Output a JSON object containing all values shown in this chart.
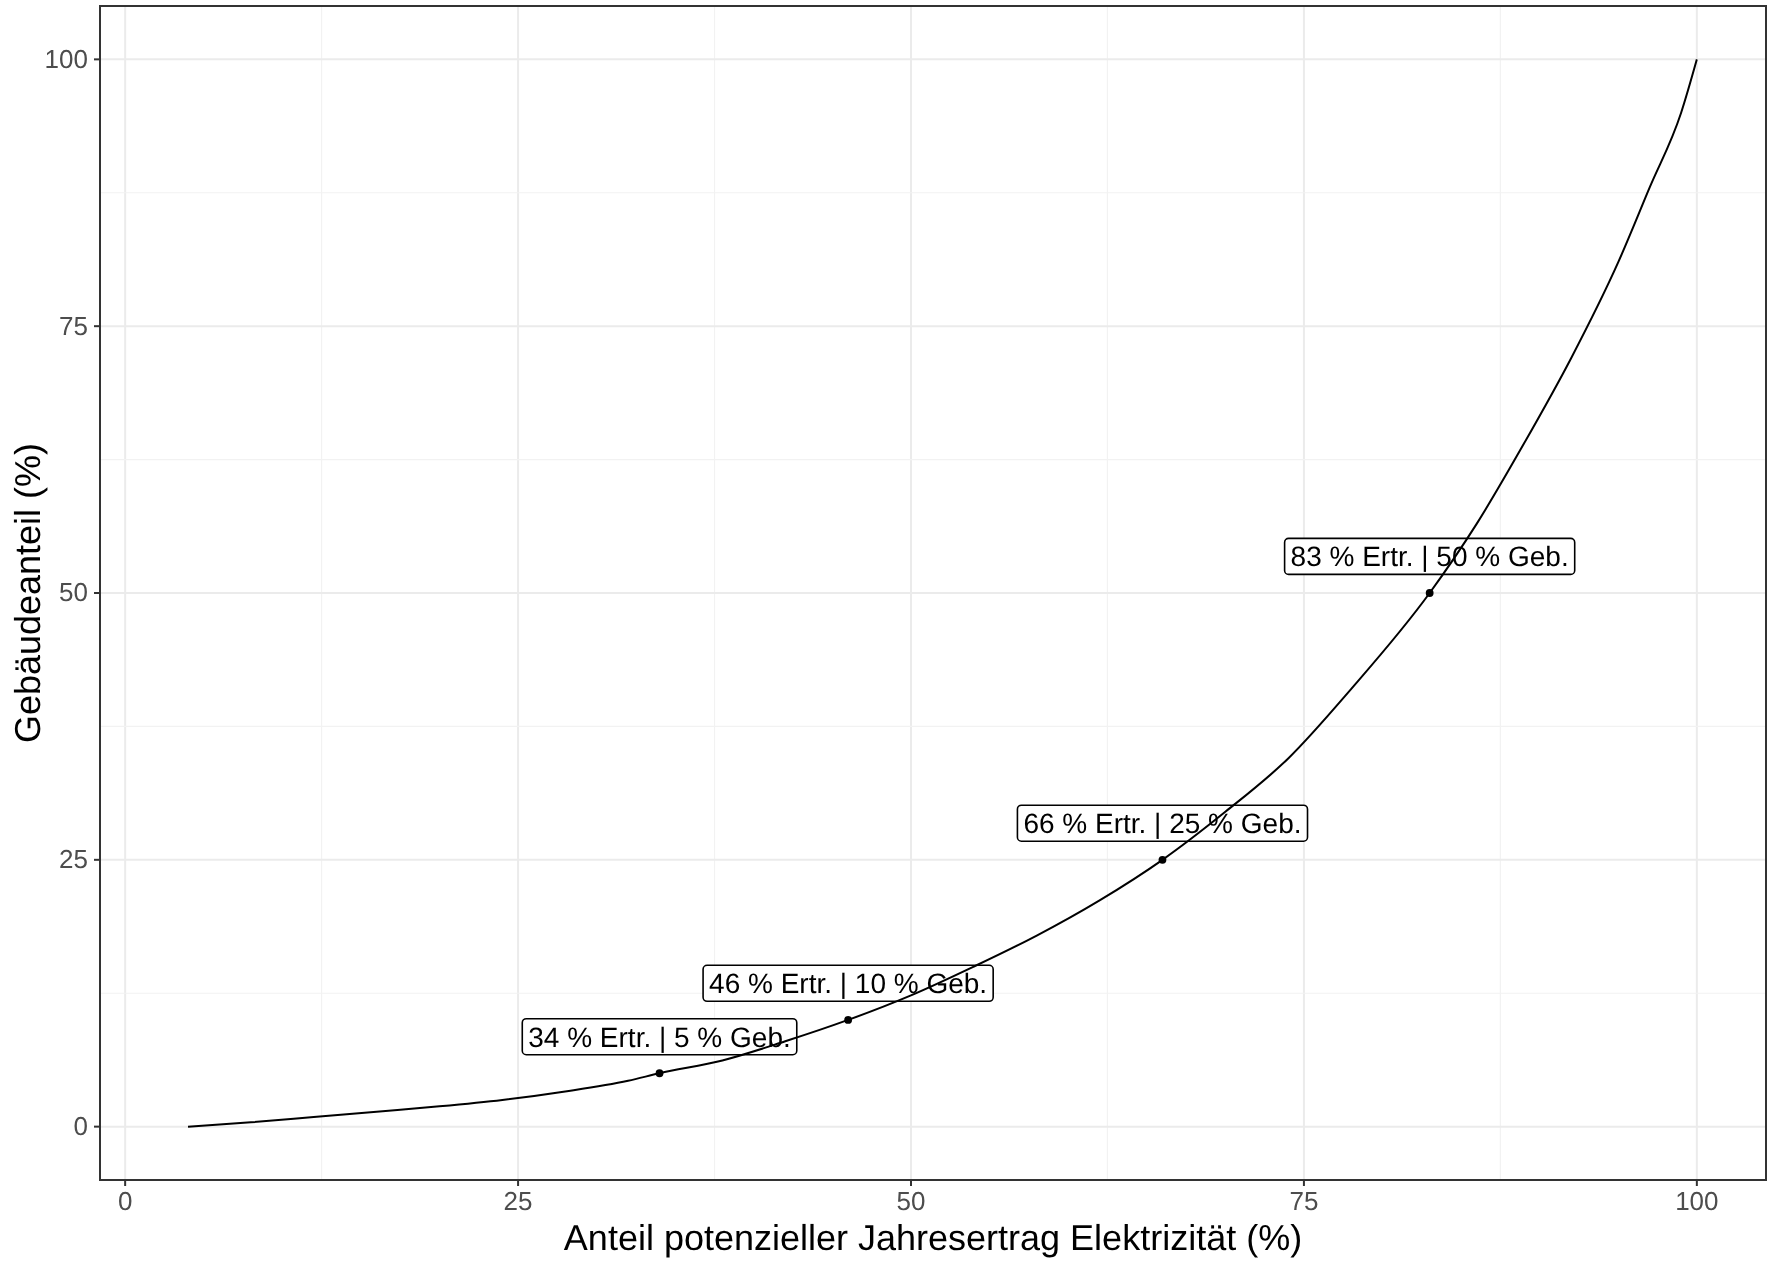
{
  "chart_data": {
    "type": "line",
    "xlabel": "Anteil potenzieller Jahresertrag Elektrizität (%)",
    "ylabel": "Gebäudeanteil (%)",
    "xlim": [
      -1.6,
      104.4
    ],
    "ylim": [
      -5,
      105
    ],
    "xticks": [
      0,
      25,
      50,
      75,
      100
    ],
    "yticks": [
      0,
      25,
      50,
      75,
      100
    ],
    "grid": true,
    "series": [
      {
        "color": "#000000",
        "x": [
          4,
          8,
          12,
          16,
          20,
          24,
          28,
          32,
          34,
          38,
          42,
          46,
          50,
          54,
          58,
          62,
          66,
          70,
          74,
          78,
          83,
          86,
          89,
          92,
          95,
          97,
          99,
          100
        ],
        "values": [
          0,
          0.4,
          0.9,
          1.4,
          1.9,
          2.5,
          3.3,
          4.3,
          5,
          6.2,
          8,
          10,
          12.3,
          15,
          17.9,
          21.2,
          25,
          29.5,
          34.5,
          41,
          50,
          56.5,
          64,
          72,
          81,
          88,
          95,
          100
        ]
      },
      {
        "type": "scatter",
        "color": "#000000",
        "marker": "circle",
        "x": [
          34,
          46,
          66,
          83
        ],
        "values": [
          5,
          10,
          25,
          50
        ]
      }
    ],
    "annotations": [
      {
        "text": "34 % Ertr. | 5 % Geb.",
        "x": 34,
        "y": 5
      },
      {
        "text": "46 % Ertr. | 10 % Geb.",
        "x": 46,
        "y": 10
      },
      {
        "text": "66 % Ertr. | 25 % Geb.",
        "x": 66,
        "y": 25
      },
      {
        "text": "83 % Ertr. | 50 % Geb.",
        "x": 83,
        "y": 50
      }
    ]
  }
}
